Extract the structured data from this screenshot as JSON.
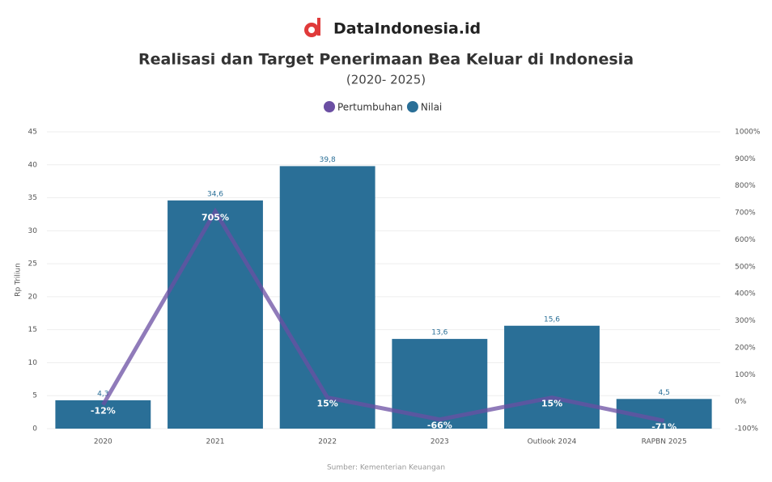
{
  "brand": "DataIndonesia.id",
  "chart_data": {
    "type": "bar-line",
    "title": "Realisasi dan Target Penerimaan Bea Keluar di Indonesia",
    "subtitle": "(2020- 2025)",
    "y_label": "Rp Triliun",
    "source": "Sumber: Kementerian Keuangan",
    "categories": [
      "2020",
      "2021",
      "2022",
      "2023",
      "Outlook 2024",
      "RAPBN 2025"
    ],
    "series": [
      {
        "name": "Pertumbuhan",
        "color": "#6b4fa3",
        "type": "line",
        "axis": "y2",
        "values": [
          -12,
          705,
          15,
          -66,
          15,
          -71
        ],
        "value_labels": [
          "-12%",
          "705%",
          "15%",
          "-66%",
          "15%",
          "-71%"
        ]
      },
      {
        "name": "Nilai",
        "color": "#2a6f97",
        "type": "bar",
        "values": [
          4.3,
          34.6,
          39.8,
          13.6,
          15.6,
          4.5
        ],
        "value_labels": [
          "4,3",
          "34,6",
          "39,8",
          "13,6",
          "15,6",
          "4,5"
        ]
      }
    ],
    "ylim": [
      0,
      45
    ],
    "yticks": [
      0,
      5,
      10,
      15,
      20,
      25,
      30,
      35,
      40,
      45
    ],
    "y2lim": [
      -100,
      1000
    ],
    "y2ticks": [
      {
        "value": -100,
        "label": "-100%"
      },
      {
        "value": 0,
        "label": "0%"
      },
      {
        "value": 100,
        "label": "100%"
      },
      {
        "value": 200,
        "label": "200%"
      },
      {
        "value": 300,
        "label": "300%"
      },
      {
        "value": 400,
        "label": "400%"
      },
      {
        "value": 500,
        "label": "500%"
      },
      {
        "value": 600,
        "label": "600%"
      },
      {
        "value": 700,
        "label": "700%"
      },
      {
        "value": 800,
        "label": "800%"
      },
      {
        "value": 900,
        "label": "900%"
      },
      {
        "value": 1000,
        "label": "1000%"
      }
    ],
    "grid": true
  }
}
